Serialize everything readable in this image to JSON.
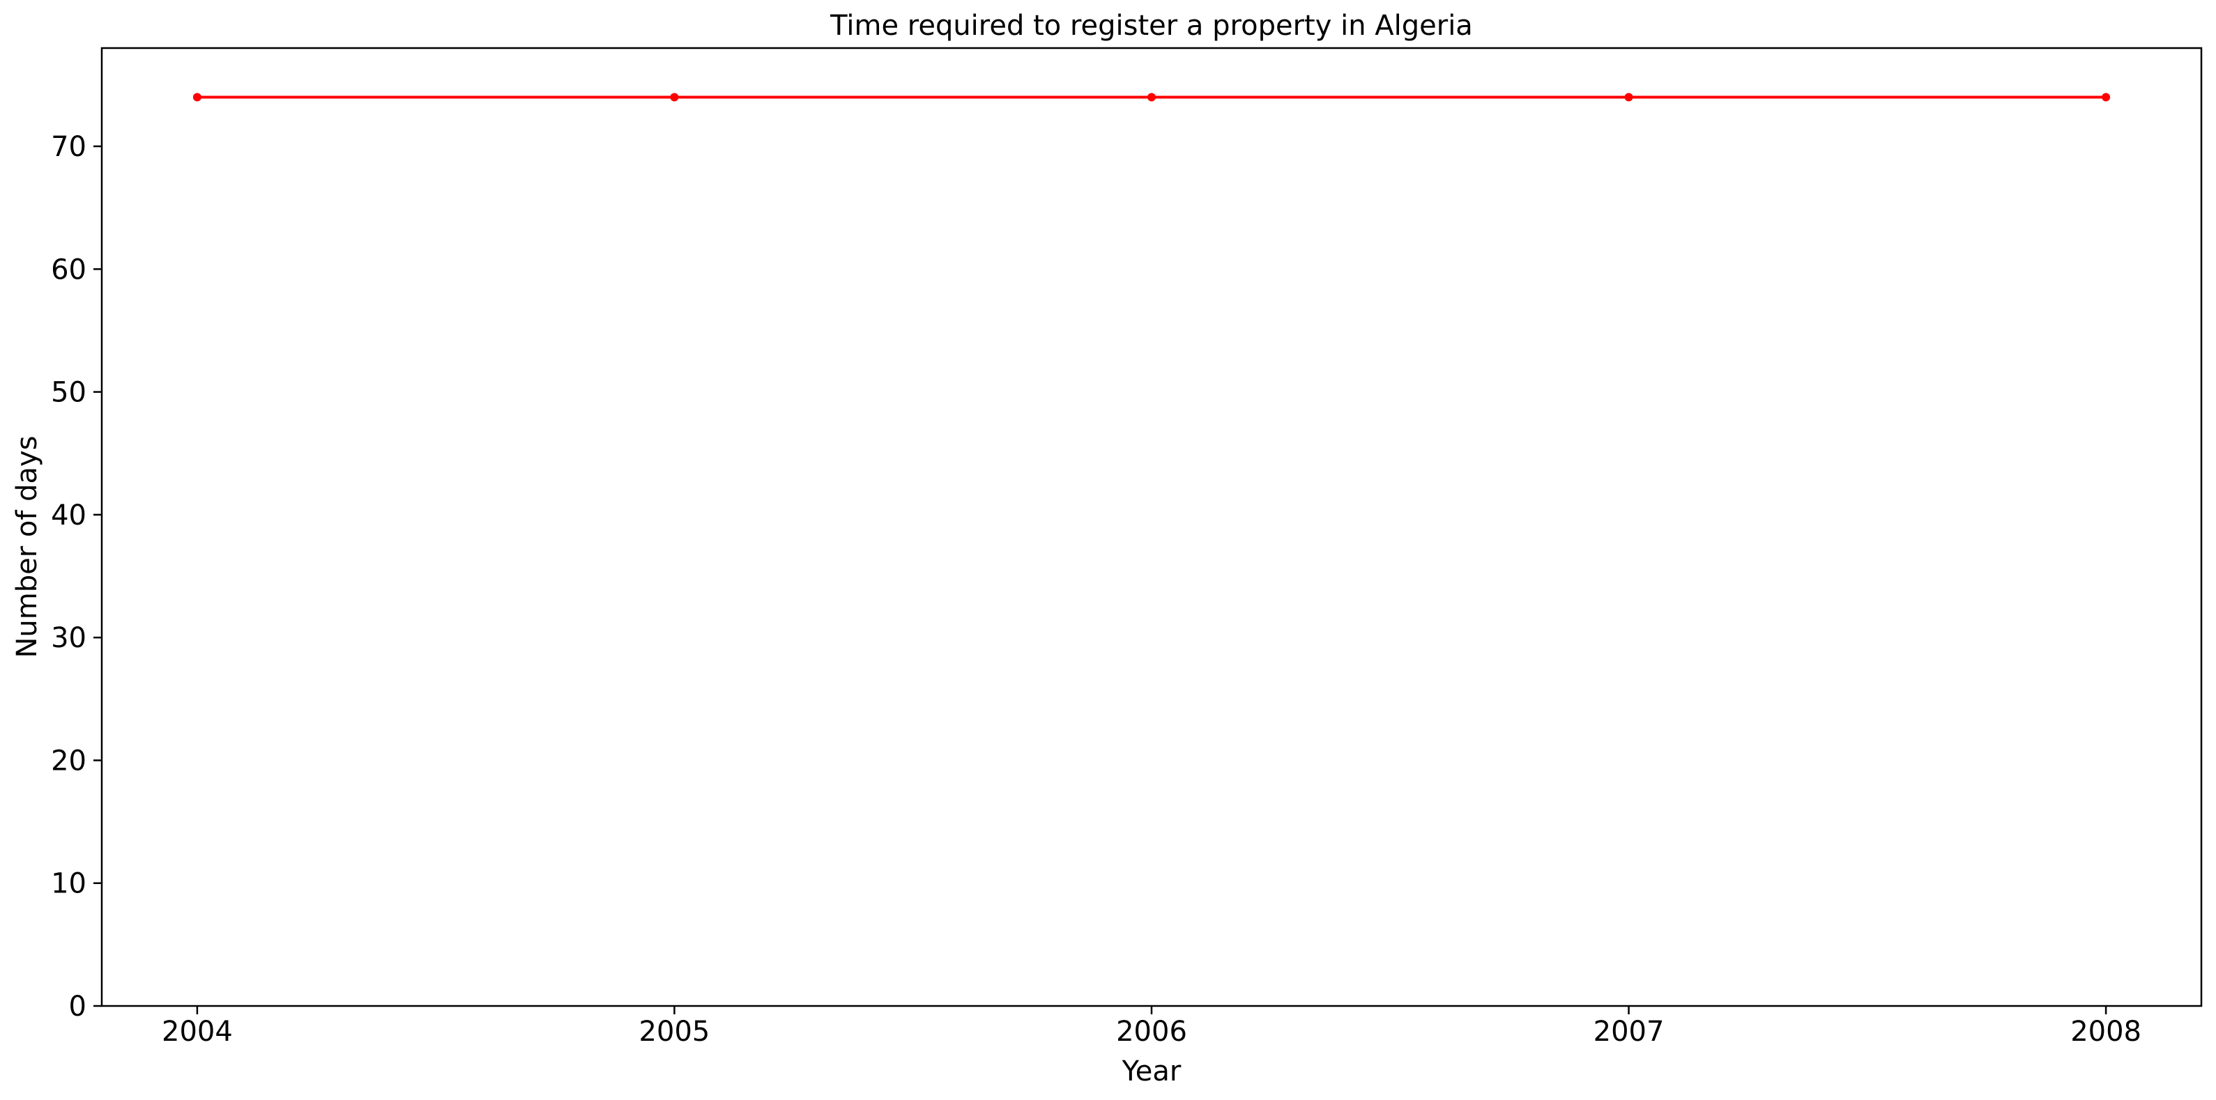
{
  "chart_data": {
    "type": "line",
    "title": "Time required to register a property in Algeria",
    "xlabel": "Year",
    "ylabel": "Number of days",
    "x": [
      2004,
      2005,
      2006,
      2007,
      2008
    ],
    "x_tick_labels": [
      "2004",
      "2005",
      "2006",
      "2007",
      "2008"
    ],
    "y_ticks": [
      0,
      10,
      20,
      30,
      40,
      50,
      60,
      70
    ],
    "y_tick_labels": [
      "0",
      "10",
      "20",
      "30",
      "40",
      "50",
      "60",
      "70"
    ],
    "ylim": [
      0,
      78
    ],
    "xlim": [
      2003.8,
      2008.2
    ],
    "grid": false,
    "legend": "none",
    "series": [
      {
        "values": [
          74,
          74,
          74,
          74,
          74
        ],
        "color": "#ff0000",
        "marker": "circle"
      }
    ]
  }
}
